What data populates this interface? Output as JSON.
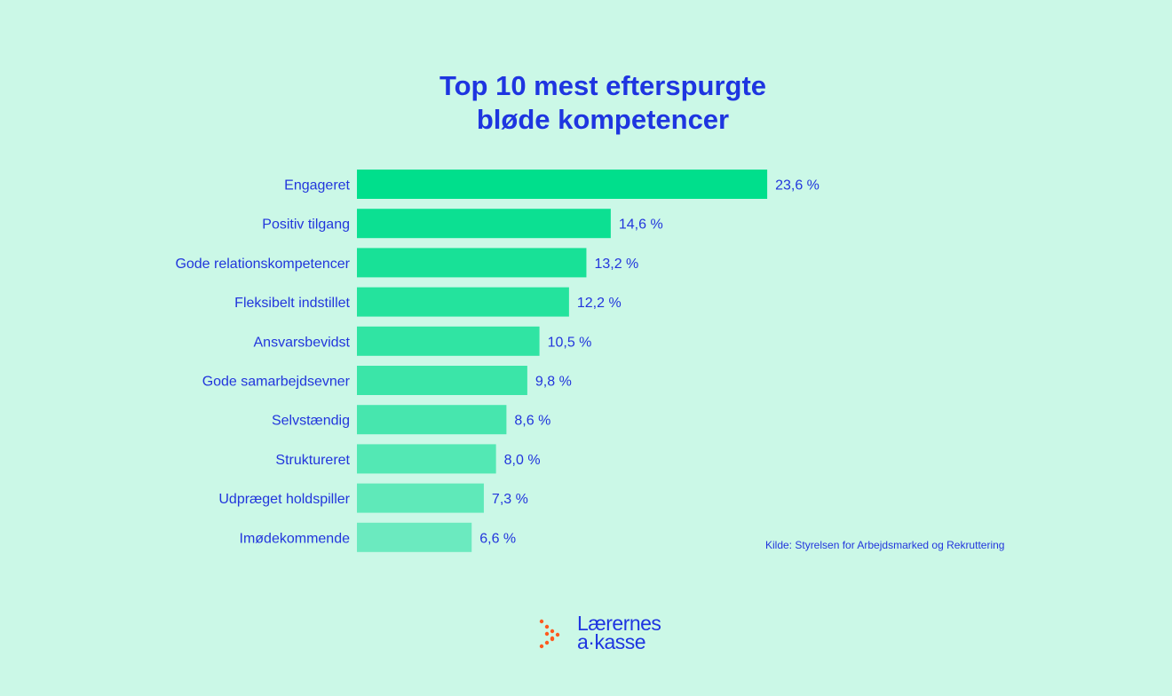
{
  "chart_data": {
    "type": "bar",
    "orientation": "horizontal",
    "title": [
      "Top 10 mest efterspurgte",
      "bløde kompetencer"
    ],
    "categories": [
      "Engageret",
      "Positiv tilgang",
      "Gode relationskompetencer",
      "Fleksibelt indstillet",
      "Ansvarsbevidst",
      "Gode samarbejdsevner",
      "Selvstændig",
      "Struktureret",
      "Udpræget holdspiller",
      "Imødekommende"
    ],
    "values": [
      23.6,
      14.6,
      13.2,
      12.2,
      10.5,
      9.8,
      8.6,
      8.0,
      7.3,
      6.6
    ],
    "value_labels": [
      "23,6 %",
      "14,6 %",
      "13,2 %",
      "12,2 %",
      "10,5 %",
      "9,8 %",
      "8,6 %",
      "8,0 %",
      "7,3 %",
      "6,6 %"
    ],
    "xlabel": "",
    "ylabel": "",
    "unit": "%",
    "grid": false,
    "colors": {
      "start": "#00df8c",
      "end": "#6beabf",
      "text": "#2236dc",
      "background": "#cbf8e7"
    }
  },
  "source": "Kilde: Styrelsen for Arbejdsmarked og Rekruttering",
  "logo": {
    "line1": "Lærernes",
    "line2": "a·kasse",
    "dot_color": "#ff5a1f"
  }
}
